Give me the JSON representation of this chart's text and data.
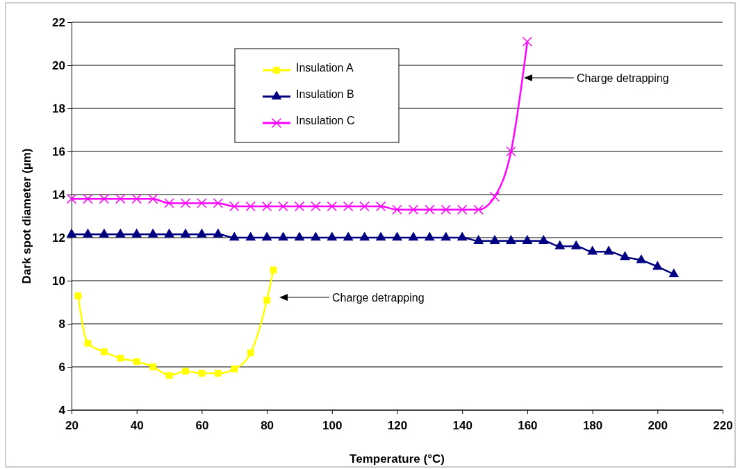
{
  "chart_data": {
    "type": "line",
    "xlabel": "Temperature (°C)",
    "ylabel": "Dark spot diameter (µm)",
    "xlim": [
      20,
      220
    ],
    "xticks": [
      20,
      40,
      60,
      80,
      100,
      120,
      140,
      160,
      180,
      200,
      220
    ],
    "ylim": [
      4,
      22
    ],
    "yticks": [
      4,
      6,
      8,
      10,
      12,
      14,
      16,
      18,
      20,
      22
    ],
    "grid": "y",
    "legend": "top",
    "series": [
      {
        "name": "Insulation A",
        "color": "#ffff00",
        "marker": "square",
        "x": [
          22,
          25,
          30,
          35,
          40,
          45,
          50,
          55,
          60,
          65,
          70,
          75,
          80,
          82
        ],
        "values": [
          9.3,
          7.1,
          6.7,
          6.4,
          6.25,
          6.0,
          5.6,
          5.8,
          5.7,
          5.7,
          5.9,
          6.65,
          9.1,
          10.5
        ]
      },
      {
        "name": "Insulation B",
        "color": "#000080",
        "marker": "triangle",
        "x": [
          20,
          25,
          30,
          35,
          40,
          45,
          50,
          55,
          60,
          65,
          70,
          75,
          80,
          85,
          90,
          95,
          100,
          105,
          110,
          115,
          120,
          125,
          130,
          135,
          140,
          145,
          150,
          155,
          160,
          165,
          170,
          175,
          180,
          185,
          190,
          195,
          200,
          205
        ],
        "values": [
          12.15,
          12.15,
          12.15,
          12.15,
          12.15,
          12.15,
          12.15,
          12.15,
          12.15,
          12.15,
          12.0,
          12.0,
          12.0,
          12.0,
          12.0,
          12.0,
          12.0,
          12.0,
          12.0,
          12.0,
          12.0,
          12.0,
          12.0,
          12.0,
          12.0,
          11.85,
          11.85,
          11.85,
          11.85,
          11.85,
          11.6,
          11.6,
          11.35,
          11.35,
          11.1,
          10.95,
          10.65,
          10.3
        ]
      },
      {
        "name": "Insulation C",
        "color": "#ff00ff",
        "marker": "cross",
        "x": [
          20,
          25,
          30,
          35,
          40,
          45,
          50,
          55,
          60,
          65,
          70,
          75,
          80,
          85,
          90,
          95,
          100,
          105,
          110,
          115,
          120,
          125,
          130,
          135,
          140,
          145,
          150,
          155,
          160
        ],
        "values": [
          13.8,
          13.8,
          13.8,
          13.8,
          13.8,
          13.8,
          13.6,
          13.6,
          13.6,
          13.6,
          13.45,
          13.45,
          13.45,
          13.45,
          13.45,
          13.45,
          13.45,
          13.45,
          13.45,
          13.45,
          13.3,
          13.3,
          13.3,
          13.3,
          13.3,
          13.3,
          13.9,
          16.0,
          21.1
        ]
      }
    ],
    "annotations": [
      "Charge detrapping",
      "Charge detrapping"
    ]
  }
}
